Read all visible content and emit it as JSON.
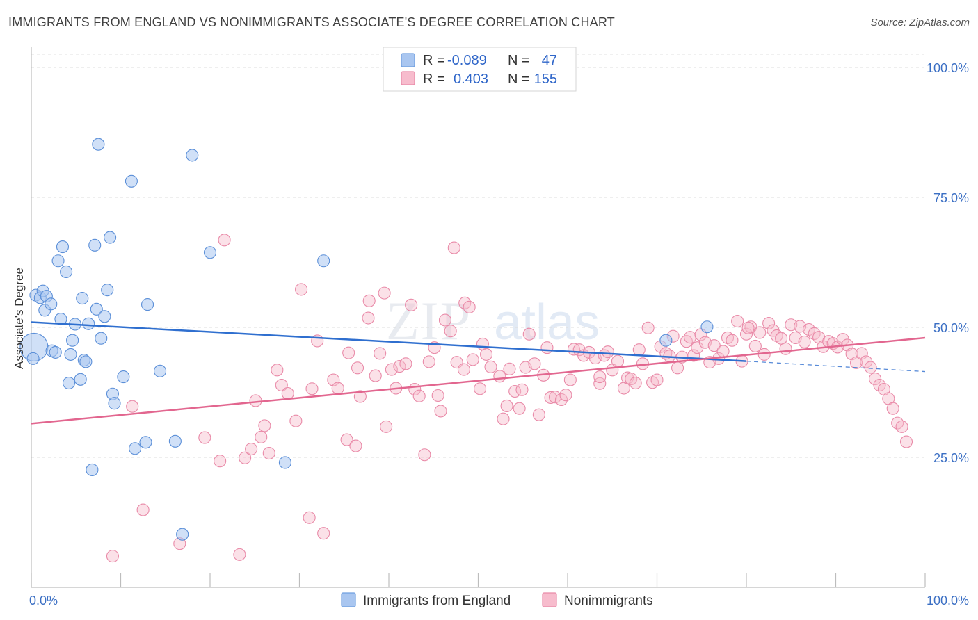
{
  "title": "IMMIGRANTS FROM ENGLAND VS NONIMMIGRANTS ASSOCIATE'S DEGREE CORRELATION CHART",
  "source": "Source: ZipAtlas.com",
  "watermark": "ZIPatlas",
  "legend": {
    "rows": [
      {
        "r_label": "R =",
        "r_value": "-0.089",
        "n_label": "N =",
        "n_value": "47",
        "color": "#a9c6f0",
        "stroke": "#6f9fe0"
      },
      {
        "r_label": "R =",
        "r_value": "0.403",
        "n_label": "N =",
        "n_value": "155",
        "color": "#f7bccd",
        "stroke": "#e98aa8"
      }
    ]
  },
  "chart_data": {
    "type": "scatter",
    "xlabel": "",
    "ylabel": "Associate's Degree",
    "xlim": [
      0,
      100
    ],
    "ylim": [
      0,
      100
    ],
    "x_tick_labels": [
      "0.0%",
      "100.0%"
    ],
    "y_tick_labels": [
      "100.0%",
      "75.0%",
      "50.0%",
      "25.0%"
    ],
    "y_ticks": [
      100,
      75,
      50,
      25
    ],
    "grid": true,
    "legend_position": "top-center",
    "series": [
      {
        "name": "Immigrants from England",
        "color": "#a9c6f0",
        "stroke": "#5b8fd8",
        "trend_color": "#2f6fcf",
        "trend": {
          "x0": 0,
          "y0": 51.0,
          "x1": 80,
          "y1": 43.5,
          "dash_to_x": 100,
          "dash_to_y": 41.5
        },
        "points": [
          [
            0.3,
            46.2
          ],
          [
            0.5,
            56.2
          ],
          [
            1.0,
            55.7
          ],
          [
            1.3,
            57.0
          ],
          [
            1.5,
            53.3
          ],
          [
            1.7,
            56.0
          ],
          [
            2.2,
            54.5
          ],
          [
            2.3,
            45.5
          ],
          [
            2.7,
            45.2
          ],
          [
            3.0,
            62.8
          ],
          [
            3.3,
            51.6
          ],
          [
            3.5,
            65.5
          ],
          [
            3.9,
            60.7
          ],
          [
            4.2,
            39.3
          ],
          [
            4.4,
            44.8
          ],
          [
            4.6,
            47.5
          ],
          [
            4.9,
            50.6
          ],
          [
            5.5,
            40.0
          ],
          [
            5.7,
            55.6
          ],
          [
            5.9,
            43.7
          ],
          [
            6.1,
            43.4
          ],
          [
            6.4,
            50.7
          ],
          [
            6.8,
            22.6
          ],
          [
            7.1,
            65.8
          ],
          [
            7.3,
            53.5
          ],
          [
            7.5,
            85.2
          ],
          [
            7.8,
            47.9
          ],
          [
            8.2,
            52.1
          ],
          [
            8.5,
            57.2
          ],
          [
            8.8,
            67.3
          ],
          [
            9.1,
            37.2
          ],
          [
            9.3,
            35.4
          ],
          [
            10.3,
            40.5
          ],
          [
            11.2,
            78.1
          ],
          [
            11.6,
            26.7
          ],
          [
            12.8,
            27.9
          ],
          [
            13.0,
            54.4
          ],
          [
            14.4,
            41.6
          ],
          [
            16.1,
            28.1
          ],
          [
            16.9,
            10.2
          ],
          [
            18.0,
            83.1
          ],
          [
            20.0,
            64.4
          ],
          [
            28.4,
            24.0
          ],
          [
            32.7,
            62.8
          ],
          [
            71.0,
            47.5
          ],
          [
            75.6,
            50.1
          ],
          [
            0.2,
            44.0
          ]
        ]
      },
      {
        "name": "Nonimmigrants",
        "color": "#f7bccd",
        "stroke": "#e98aa8",
        "trend_color": "#e2668f",
        "trend": {
          "x0": 0,
          "y0": 31.5,
          "x1": 100,
          "y1": 48.0
        },
        "points": [
          [
            9.1,
            6.0
          ],
          [
            11.3,
            34.8
          ],
          [
            12.5,
            14.9
          ],
          [
            16.6,
            8.4
          ],
          [
            19.4,
            28.8
          ],
          [
            21.1,
            24.3
          ],
          [
            21.6,
            66.8
          ],
          [
            23.3,
            6.3
          ],
          [
            23.9,
            24.9
          ],
          [
            24.6,
            26.6
          ],
          [
            25.1,
            35.9
          ],
          [
            25.7,
            28.9
          ],
          [
            26.1,
            31.1
          ],
          [
            26.6,
            25.8
          ],
          [
            27.5,
            41.8
          ],
          [
            28.0,
            38.9
          ],
          [
            28.7,
            37.3
          ],
          [
            29.6,
            32.0
          ],
          [
            30.2,
            57.3
          ],
          [
            31.1,
            13.4
          ],
          [
            31.4,
            38.2
          ],
          [
            32.0,
            47.4
          ],
          [
            32.7,
            10.4
          ],
          [
            33.8,
            39.9
          ],
          [
            34.3,
            38.3
          ],
          [
            35.3,
            28.4
          ],
          [
            35.5,
            45.1
          ],
          [
            36.3,
            27.2
          ],
          [
            36.5,
            42.2
          ],
          [
            36.8,
            36.7
          ],
          [
            37.7,
            51.8
          ],
          [
            37.8,
            55.1
          ],
          [
            38.5,
            40.7
          ],
          [
            39.0,
            45.0
          ],
          [
            39.5,
            56.6
          ],
          [
            39.7,
            30.9
          ],
          [
            40.3,
            41.9
          ],
          [
            40.8,
            38.3
          ],
          [
            41.2,
            42.5
          ],
          [
            41.9,
            43.0
          ],
          [
            42.5,
            54.3
          ],
          [
            42.9,
            38.1
          ],
          [
            43.4,
            36.8
          ],
          [
            44.0,
            25.5
          ],
          [
            44.5,
            43.4
          ],
          [
            45.1,
            46.1
          ],
          [
            45.5,
            36.9
          ],
          [
            45.8,
            33.9
          ],
          [
            46.3,
            51.4
          ],
          [
            46.9,
            49.3
          ],
          [
            47.3,
            65.3
          ],
          [
            47.6,
            43.3
          ],
          [
            48.4,
            41.9
          ],
          [
            48.5,
            54.7
          ],
          [
            49.0,
            53.9
          ],
          [
            49.4,
            43.8
          ],
          [
            50.2,
            38.2
          ],
          [
            50.5,
            46.8
          ],
          [
            50.9,
            44.8
          ],
          [
            51.4,
            42.4
          ],
          [
            52.4,
            40.6
          ],
          [
            52.8,
            32.4
          ],
          [
            53.2,
            34.9
          ],
          [
            53.5,
            42.0
          ],
          [
            54.1,
            37.7
          ],
          [
            54.6,
            34.4
          ],
          [
            54.9,
            38.0
          ],
          [
            55.3,
            42.3
          ],
          [
            55.7,
            48.7
          ],
          [
            56.3,
            43.0
          ],
          [
            56.8,
            33.2
          ],
          [
            57.3,
            40.8
          ],
          [
            57.7,
            46.1
          ],
          [
            58.1,
            36.5
          ],
          [
            58.6,
            36.6
          ],
          [
            59.3,
            36.1
          ],
          [
            59.8,
            37.0
          ],
          [
            60.3,
            39.9
          ],
          [
            60.7,
            45.8
          ],
          [
            61.3,
            45.7
          ],
          [
            61.8,
            44.6
          ],
          [
            62.4,
            45.2
          ],
          [
            63.1,
            44.1
          ],
          [
            63.6,
            39.2
          ],
          [
            64.1,
            44.6
          ],
          [
            64.5,
            45.3
          ],
          [
            65.0,
            41.8
          ],
          [
            65.6,
            43.5
          ],
          [
            66.3,
            38.3
          ],
          [
            66.7,
            40.3
          ],
          [
            67.1,
            40.1
          ],
          [
            67.6,
            39.3
          ],
          [
            68.0,
            45.7
          ],
          [
            68.4,
            43.0
          ],
          [
            69.0,
            49.9
          ],
          [
            69.5,
            39.4
          ],
          [
            70.0,
            39.9
          ],
          [
            70.4,
            46.3
          ],
          [
            71.0,
            45.0
          ],
          [
            71.4,
            44.5
          ],
          [
            71.8,
            48.3
          ],
          [
            72.3,
            42.2
          ],
          [
            72.8,
            44.3
          ],
          [
            73.3,
            47.3
          ],
          [
            73.7,
            48.1
          ],
          [
            74.1,
            44.6
          ],
          [
            74.5,
            46.1
          ],
          [
            74.9,
            48.6
          ],
          [
            75.4,
            47.1
          ],
          [
            75.9,
            43.3
          ],
          [
            76.4,
            46.5
          ],
          [
            76.9,
            44.0
          ],
          [
            77.4,
            45.4
          ],
          [
            77.9,
            48.0
          ],
          [
            78.4,
            47.5
          ],
          [
            79.0,
            51.2
          ],
          [
            79.5,
            43.5
          ],
          [
            80.0,
            48.7
          ],
          [
            80.5,
            50.1
          ],
          [
            81.0,
            46.4
          ],
          [
            81.5,
            49.0
          ],
          [
            82.0,
            44.8
          ],
          [
            82.5,
            50.8
          ],
          [
            83.0,
            49.4
          ],
          [
            83.4,
            48.4
          ],
          [
            83.9,
            47.9
          ],
          [
            84.4,
            45.9
          ],
          [
            85.0,
            50.5
          ],
          [
            85.5,
            48.0
          ],
          [
            86.0,
            50.2
          ],
          [
            86.5,
            47.2
          ],
          [
            87.0,
            49.6
          ],
          [
            87.6,
            48.8
          ],
          [
            88.1,
            48.1
          ],
          [
            88.6,
            46.3
          ],
          [
            89.2,
            47.3
          ],
          [
            89.7,
            46.9
          ],
          [
            90.2,
            46.2
          ],
          [
            90.8,
            47.7
          ],
          [
            91.3,
            46.6
          ],
          [
            91.8,
            44.9
          ],
          [
            92.3,
            43.2
          ],
          [
            92.9,
            45.0
          ],
          [
            93.4,
            43.4
          ],
          [
            93.9,
            42.3
          ],
          [
            94.4,
            40.1
          ],
          [
            94.9,
            38.9
          ],
          [
            95.4,
            38.1
          ],
          [
            95.9,
            36.3
          ],
          [
            96.4,
            34.4
          ],
          [
            96.9,
            31.6
          ],
          [
            97.4,
            30.9
          ],
          [
            97.9,
            28.0
          ],
          [
            80.2,
            49.9
          ],
          [
            63.6,
            40.5
          ]
        ]
      }
    ]
  },
  "bottom_legend": [
    {
      "label": "Immigrants from England",
      "color": "#a9c6f0",
      "stroke": "#6f9fe0"
    },
    {
      "label": "Nonimmigrants",
      "color": "#f7bccd",
      "stroke": "#e98aa8"
    }
  ]
}
